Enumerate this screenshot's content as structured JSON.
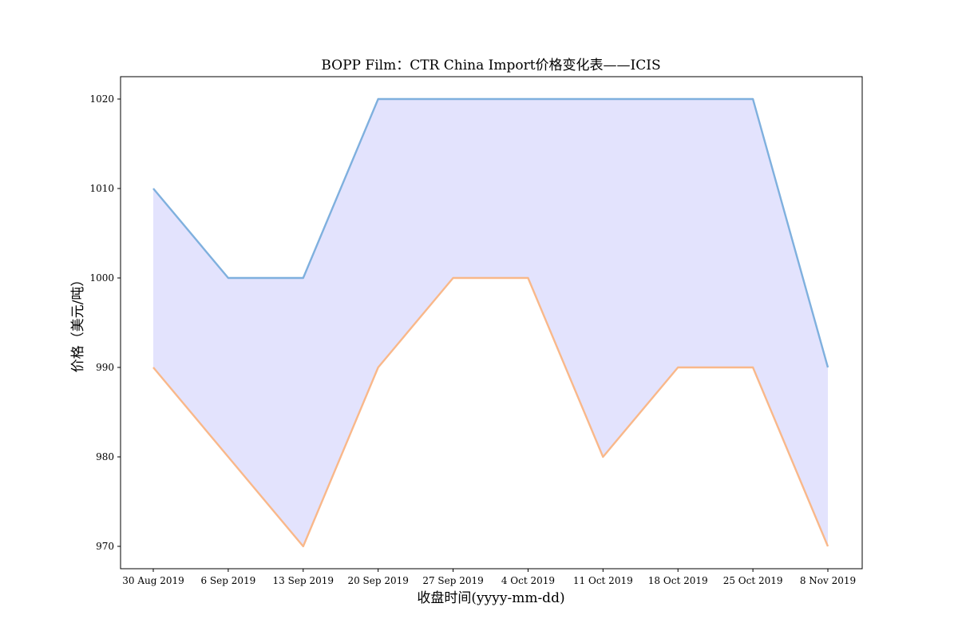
{
  "chart_data": {
    "type": "area",
    "title": "BOPP Film：CTR China Import价格变化表——ICIS",
    "xlabel": "收盘时间(yyyy-mm-dd)",
    "ylabel": "价格（美元/吨）",
    "categories": [
      "30 Aug 2019",
      "6 Sep 2019",
      "13 Sep 2019",
      "20 Sep 2019",
      "27 Sep 2019",
      "4 Oct 2019",
      "11 Oct 2019",
      "18 Oct 2019",
      "25 Oct 2019",
      "8 Nov 2019"
    ],
    "series": [
      {
        "values": [
          1010,
          1000,
          1000,
          1020,
          1020,
          1020,
          1020,
          1020,
          1020,
          990
        ],
        "color": "#7fb0de"
      },
      {
        "values": [
          990,
          980,
          970,
          990,
          1000,
          1000,
          980,
          990,
          990,
          970
        ],
        "color": "#f9b88a"
      }
    ],
    "fill_between": {
      "color": "#e3e3fd"
    },
    "yticks": [
      970,
      980,
      990,
      1000,
      1010,
      1020
    ],
    "ylim": [
      967.5,
      1022.5
    ],
    "grid": false,
    "legend": "none"
  }
}
